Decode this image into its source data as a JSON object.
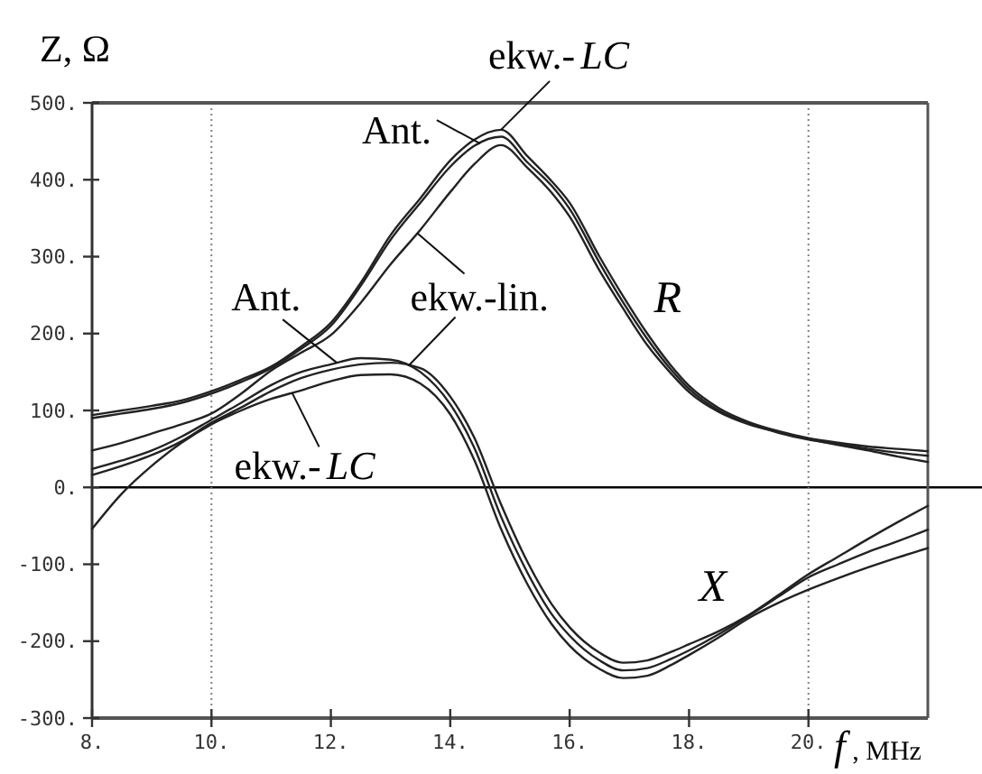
{
  "chart_data": {
    "type": "line",
    "xlabel": "f , MHz",
    "ylabel": "Z, Ω",
    "x": [
      8,
      8.5,
      9,
      9.5,
      10,
      10.5,
      11,
      11.5,
      12,
      12.5,
      13,
      13.5,
      14,
      14.4,
      14.85,
      15.3,
      15.7,
      16,
      16.5,
      16.9,
      17.3,
      17.7,
      18,
      18.5,
      19,
      19.5,
      20,
      20.5,
      21,
      21.5,
      22
    ],
    "series": [
      {
        "color": "#222222",
        "values": [
          94,
          100,
          106,
          113,
          125,
          140,
          157,
          183,
          214,
          266,
          328,
          376,
          425,
          452,
          465,
          430,
          398,
          370,
          300,
          248,
          200,
          158,
          132,
          103,
          85,
          73,
          64,
          58,
          53,
          50,
          47
        ]
      },
      {
        "color": "#222222",
        "values": [
          90,
          96,
          102,
          110,
          122,
          137,
          155,
          180,
          210,
          262,
          322,
          370,
          417,
          444,
          456,
          422,
          392,
          362,
          292,
          240,
          193,
          153,
          128,
          100,
          83,
          71,
          62,
          56,
          50,
          45,
          41
        ]
      },
      {
        "color": "#222222",
        "values": [
          48,
          58,
          70,
          82,
          96,
          122,
          152,
          175,
          198,
          240,
          290,
          335,
          384,
          420,
          445,
          415,
          383,
          352,
          282,
          232,
          185,
          148,
          124,
          98,
          82,
          72,
          63,
          55,
          48,
          40,
          33
        ]
      },
      {
        "color": "#222222",
        "values": [
          24,
          35,
          48,
          66,
          88,
          110,
          133,
          150,
          160,
          168,
          166,
          150,
          108,
          52,
          -38,
          -112,
          -165,
          -193,
          -225,
          -238,
          -235,
          -223,
          -212,
          -191,
          -167,
          -142,
          -117,
          -100,
          -84,
          -70,
          -55
        ]
      },
      {
        "color": "#222222",
        "values": [
          16,
          28,
          42,
          60,
          84,
          104,
          125,
          142,
          153,
          160,
          162,
          155,
          118,
          65,
          -22,
          -98,
          -152,
          -182,
          -215,
          -228,
          -225,
          -214,
          -204,
          -187,
          -166,
          -140,
          -113,
          -90,
          -67,
          -45,
          -24
        ]
      },
      {
        "color": "#222222",
        "values": [
          -54,
          -8,
          28,
          58,
          82,
          100,
          115,
          126,
          138,
          146,
          147,
          135,
          95,
          36,
          -54,
          -127,
          -178,
          -206,
          -236,
          -248,
          -245,
          -231,
          -218,
          -195,
          -170,
          -150,
          -133,
          -118,
          -104,
          -91,
          -79
        ]
      }
    ],
    "xlim": [
      8,
      22
    ],
    "ylim": [
      -300,
      500
    ],
    "xticks": [
      {
        "value": 8,
        "label": "8."
      },
      {
        "value": 10,
        "label": "10."
      },
      {
        "value": 12,
        "label": "12."
      },
      {
        "value": 14,
        "label": "14."
      },
      {
        "value": 16,
        "label": "16."
      },
      {
        "value": 18,
        "label": "18."
      },
      {
        "value": 20,
        "label": "20."
      }
    ],
    "yticks": [
      {
        "value": -300,
        "label": "-300."
      },
      {
        "value": -200,
        "label": "-200."
      },
      {
        "value": -100,
        "label": "-100."
      },
      {
        "value": 0,
        "label": "0."
      },
      {
        "value": 100,
        "label": "100."
      },
      {
        "value": 200,
        "label": "200."
      },
      {
        "value": 300,
        "label": "300."
      },
      {
        "value": 400,
        "label": "400."
      },
      {
        "value": 500,
        "label": "500."
      }
    ],
    "ref_lines": [
      {
        "axis": "y",
        "value": 0,
        "color": "#000000",
        "line_style": "solid"
      },
      {
        "axis": "x",
        "value": 10,
        "color": "#808080",
        "line_style": "dotted"
      },
      {
        "axis": "x",
        "value": 20,
        "color": "#808080",
        "line_style": "dotted"
      }
    ],
    "annotations": [
      {
        "text": "ekw.-LC",
        "x": 14.85,
        "y": 465
      },
      {
        "text": "Ant.",
        "x": 14.5,
        "y": 447
      },
      {
        "text": "ekw.-lin.",
        "x": 13.3,
        "y": 158
      },
      {
        "text": "Ant.",
        "x": 12.1,
        "y": 162
      },
      {
        "text": "ekw.-LC",
        "x": 11.35,
        "y": 123
      },
      {
        "text": "R",
        "x": 17.2,
        "y": 212
      },
      {
        "text": "X",
        "x": 18.4,
        "y": -195
      }
    ],
    "line_style": "solid"
  }
}
